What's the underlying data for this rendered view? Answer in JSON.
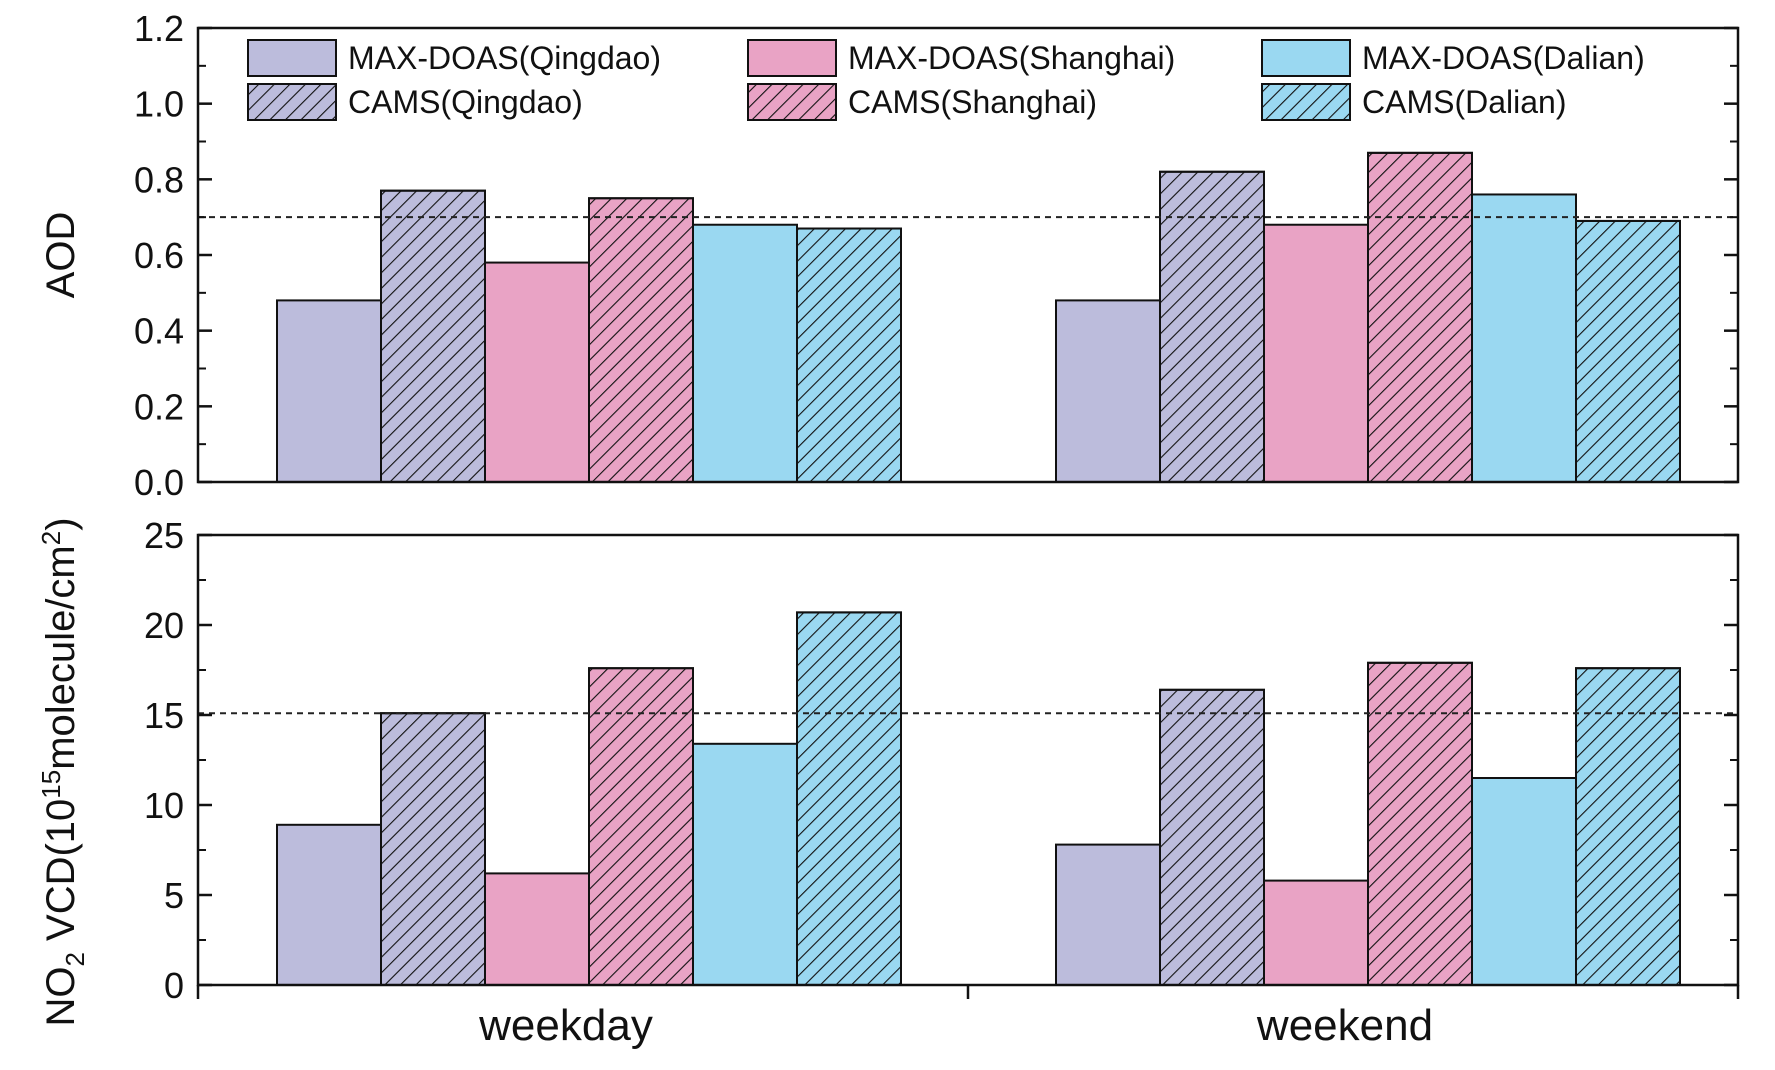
{
  "chart_data": [
    {
      "type": "bar",
      "panel": "top",
      "ylabel": "AOD",
      "ylim": [
        0,
        1.2
      ],
      "yticks": [
        "0.0",
        "0.2",
        "0.4",
        "0.6",
        "0.8",
        "1.0",
        "1.2"
      ],
      "reference_line": 0.7,
      "categories": [
        "weekday",
        "weekend"
      ],
      "series": [
        {
          "name": "MAX-DOAS(Qingdao)",
          "color": "#bcbcdc",
          "hatched": false,
          "values": [
            0.48,
            0.48
          ]
        },
        {
          "name": "CAMS(Qingdao)",
          "color": "#bcbcdc",
          "hatched": true,
          "values": [
            0.77,
            0.82
          ]
        },
        {
          "name": "MAX-DOAS(Shanghai)",
          "color": "#e9a3c5",
          "hatched": false,
          "values": [
            0.58,
            0.68
          ]
        },
        {
          "name": "CAMS(Shanghai)",
          "color": "#e9a3c5",
          "hatched": true,
          "values": [
            0.75,
            0.87
          ]
        },
        {
          "name": "MAX-DOAS(Dalian)",
          "color": "#9ad8f1",
          "hatched": false,
          "values": [
            0.68,
            0.76
          ]
        },
        {
          "name": "CAMS(Dalian)",
          "color": "#9ad8f1",
          "hatched": true,
          "values": [
            0.67,
            0.69
          ]
        }
      ]
    },
    {
      "type": "bar",
      "panel": "bottom",
      "ylabel_parts": {
        "a": "NO",
        "sub": "2",
        "b": " VCD(10",
        "sup": "15",
        "c": "molecule/cm",
        "sup2": "2",
        "d": ")"
      },
      "ylim": [
        0,
        25
      ],
      "yticks": [
        "0",
        "5",
        "10",
        "15",
        "20",
        "25"
      ],
      "reference_line": 15.1,
      "categories": [
        "weekday",
        "weekend"
      ],
      "series": [
        {
          "name": "MAX-DOAS(Qingdao)",
          "color": "#bcbcdc",
          "hatched": false,
          "values": [
            8.9,
            7.8
          ]
        },
        {
          "name": "CAMS(Qingdao)",
          "color": "#bcbcdc",
          "hatched": true,
          "values": [
            15.1,
            16.4
          ]
        },
        {
          "name": "MAX-DOAS(Shanghai)",
          "color": "#e9a3c5",
          "hatched": false,
          "values": [
            6.2,
            5.8
          ]
        },
        {
          "name": "CAMS(Shanghai)",
          "color": "#e9a3c5",
          "hatched": true,
          "values": [
            17.6,
            17.9
          ]
        },
        {
          "name": "MAX-DOAS(Dalian)",
          "color": "#9ad8f1",
          "hatched": false,
          "values": [
            13.4,
            11.5
          ]
        },
        {
          "name": "CAMS(Dalian)",
          "color": "#9ad8f1",
          "hatched": true,
          "values": [
            20.7,
            17.6
          ]
        }
      ]
    }
  ],
  "legend": [
    {
      "label": "MAX-DOAS(Qingdao)",
      "color": "#bcbcdc",
      "hatched": false
    },
    {
      "label": "MAX-DOAS(Shanghai)",
      "color": "#e9a3c5",
      "hatched": false
    },
    {
      "label": "MAX-DOAS(Dalian)",
      "color": "#9ad8f1",
      "hatched": false
    },
    {
      "label": "CAMS(Qingdao)",
      "color": "#bcbcdc",
      "hatched": true
    },
    {
      "label": "CAMS(Shanghai)",
      "color": "#e9a3c5",
      "hatched": true
    },
    {
      "label": "CAMS(Dalian)",
      "color": "#9ad8f1",
      "hatched": true
    }
  ]
}
